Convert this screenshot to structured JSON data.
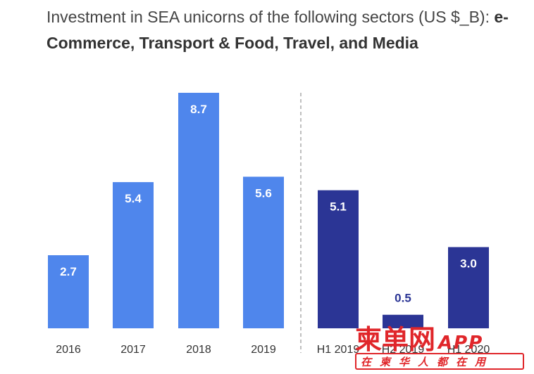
{
  "title": {
    "plain": "Investment in SEA unicorns of the following sectors (US $_B): ",
    "bold": "e-Commerce, Transport & Food, Travel, and Media"
  },
  "chart_data": [
    {
      "type": "bar",
      "categories": [
        "2016",
        "2017",
        "2018",
        "2019"
      ],
      "values": [
        2.7,
        5.4,
        8.7,
        5.6
      ],
      "color": "#4f86ec",
      "ylim": [
        0,
        8.7
      ]
    },
    {
      "type": "bar",
      "categories": [
        "H1 2019",
        "H2 2019",
        "H1 2020"
      ],
      "values": [
        5.1,
        0.5,
        3.0
      ],
      "color": "#2b3595",
      "ylim": [
        0,
        8.7
      ]
    }
  ],
  "value_labels": {
    "annual": [
      "2.7",
      "5.4",
      "8.7",
      "5.6"
    ],
    "half": [
      "5.1",
      "0.5",
      "3.0"
    ]
  },
  "watermark": {
    "main": "柬单网",
    "app": "APP",
    "sub": "在柬华人都在用"
  }
}
